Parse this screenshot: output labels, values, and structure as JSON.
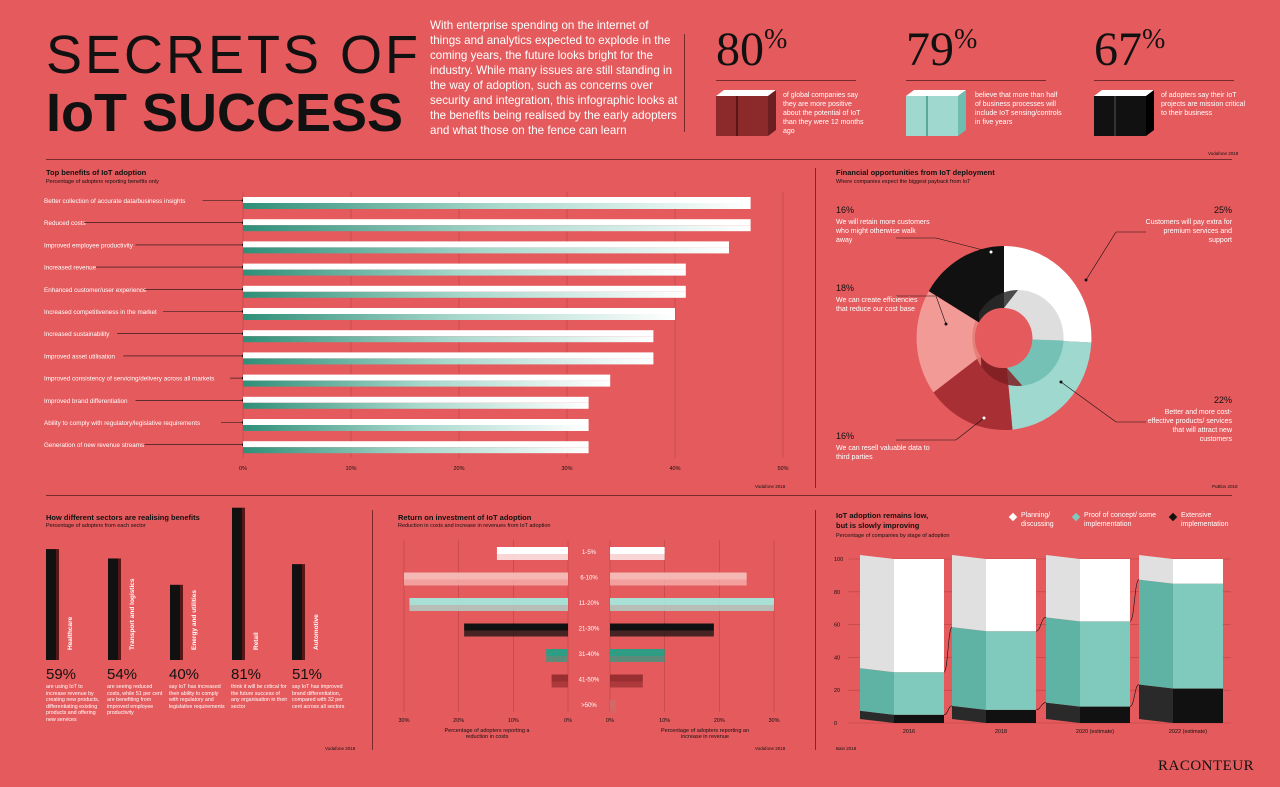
{
  "header": {
    "title_line1": "SECRETS OF",
    "title_line2": "IoT SUCCESS",
    "intro": "With enterprise spending on the internet of things and analytics expected to explode in the coming years, the future looks bright for the industry. While many issues are still standing in the way of adoption, such as concerns over security and integration, this infographic looks at the benefits being realised by the early adopters and what those on the fence can learn",
    "stats": [
      {
        "value": "80",
        "desc": "of global companies say they are more positive about the potential of IoT than they were 12 months ago",
        "color": "#8c2a2b"
      },
      {
        "value": "79",
        "desc": "believe that more than half of business processes will include IoT sensing/controls in five years",
        "color": "#9fd8cf"
      },
      {
        "value": "67",
        "desc": "of adopters say their IoT projects are mission critical to their business",
        "color": "#111111"
      }
    ],
    "source": "Vodafone 2018",
    "pct_sign": "%"
  },
  "benefits": {
    "title": "Top benefits of IoT adoption",
    "subtitle": "Percentage of adopters reporting benefits only",
    "source": "Vodafone 2018",
    "ticks": [
      "0%",
      "10%",
      "20%",
      "30%",
      "40%",
      "50%"
    ]
  },
  "financial": {
    "title": "Financial opportunities from IoT deployment",
    "subtitle": "Where companies expect the biggest payback from IoT",
    "source": "PuBlos 2018",
    "slices": [
      {
        "pct": "16%",
        "text": "We will retain more customers who might otherwise walk away"
      },
      {
        "pct": "25%",
        "text": "Customers will pay extra for premium services and support"
      },
      {
        "pct": "18%",
        "text": "We can create efficiencies that reduce our cost base"
      },
      {
        "pct": "22%",
        "text": "Better and more cost-effective products/ services that will attract new customers"
      },
      {
        "pct": "16%",
        "text": "We can resell valuable data to third parties"
      }
    ]
  },
  "sectors": {
    "title": "How different sectors are realising benefits",
    "subtitle": "Percentage of adopters from each sector",
    "source": "Vodafone 2018",
    "items": [
      {
        "name": "Healthcare",
        "pct": "59",
        "desc": "are using IoT to increase revenue by creating new products, differentiating existing products and offering new services"
      },
      {
        "name": "Transport and logistics",
        "pct": "54",
        "desc": "are seeing reduced costs, while 51 per cent are benefiting from improved employee productivity"
      },
      {
        "name": "Energy and utilities",
        "pct": "40",
        "desc": "say IoT has increased their ability to comply with regulatory and legislative requirements"
      },
      {
        "name": "Retail",
        "pct": "81",
        "desc": "think it will be critical for the future success of any organisation in their sector"
      },
      {
        "name": "Automotive",
        "pct": "51",
        "desc": "say IoT has improved brand differentiation, compared with 32 per cent across all sectors"
      }
    ]
  },
  "roi": {
    "title": "Return on investment of IoT adoption",
    "subtitle": "Reduction in costs and increase in revenues from IoT adoption",
    "left_caption": "Percentage of adopters reporting a reduction in costs",
    "right_caption": "Percentage of adopters reporting an increase in revenue",
    "source": "Vodafone 2018",
    "left_ticks": [
      "30%",
      "20%",
      "10%",
      "0%"
    ],
    "right_ticks": [
      "0%",
      "10%",
      "20%",
      "30%"
    ]
  },
  "adoption": {
    "title_line1": "IoT adoption remains low,",
    "title_line2": "but is slowly improving",
    "subtitle": "Percentage of companies by stage of adoption",
    "source": "Bain 2018",
    "legend": [
      {
        "label": "Planning/ discussing",
        "color": "#ffffff"
      },
      {
        "label": "Proof of concept/ some implementation",
        "color": "#7fcabd"
      },
      {
        "label": "Extensive implementation",
        "color": "#111111"
      }
    ],
    "yticks": [
      "100",
      "80",
      "60",
      "40",
      "20",
      "0"
    ]
  },
  "brand": "RACONTEUR",
  "chart_data": [
    {
      "type": "bar",
      "title": "Top benefits of IoT adoption",
      "categories": [
        "Better collection of accurate data/business insights",
        "Reduced costs",
        "Improved employee productivity",
        "Increased revenue",
        "Enhanced customer/user experience",
        "Increased competitiveness in the market",
        "Increased sustainability",
        "Improved asset utilisation",
        "Improved consistency of servicing/delivery across all markets",
        "Improved brand differentiation",
        "Ability to comply with regulatory/legislative requirements",
        "Generation of new revenue streams"
      ],
      "values": [
        47,
        47,
        45,
        41,
        41,
        40,
        38,
        38,
        34,
        32,
        32,
        32
      ],
      "xlim": [
        0,
        50
      ]
    },
    {
      "type": "pie",
      "title": "Financial opportunities from IoT deployment",
      "categories": [
        "Customers will pay extra for premium services and support",
        "Better and more cost-effective products/ services that will attract new customers",
        "We can resell valuable data to third parties",
        "We can create efficiencies that reduce our cost base",
        "We will retain more customers who might otherwise walk away"
      ],
      "values": [
        25,
        22,
        16,
        18,
        16
      ]
    },
    {
      "type": "bar",
      "title": "How different sectors are realising benefits",
      "categories": [
        "Healthcare",
        "Transport and logistics",
        "Energy and utilities",
        "Retail",
        "Automotive"
      ],
      "values": [
        59,
        54,
        40,
        81,
        51
      ]
    },
    {
      "type": "bar",
      "title": "Return on investment of IoT adoption",
      "categories": [
        "1-5%",
        "6-10%",
        "11-20%",
        "21-30%",
        "31-40%",
        "41-50%",
        ">50%"
      ],
      "series": [
        {
          "name": "Percentage of adopters reporting a reduction in costs",
          "values": [
            13,
            30,
            29,
            19,
            4,
            3,
            0
          ]
        },
        {
          "name": "Percentage of adopters reporting an increase in revenue",
          "values": [
            10,
            25,
            30,
            19,
            10,
            6,
            1
          ]
        }
      ],
      "xlim": [
        0,
        30
      ]
    },
    {
      "type": "bar",
      "title": "IoT adoption remains low, but is slowly improving",
      "categories": [
        "2016",
        "2018",
        "2020 (estimate)",
        "2022 (estimate)"
      ],
      "series": [
        {
          "name": "Extensive implementation",
          "values": [
            5,
            8,
            10,
            21
          ]
        },
        {
          "name": "Proof of concept/ some implementation",
          "values": [
            26,
            48,
            52,
            64
          ]
        },
        {
          "name": "Planning/ discussing",
          "values": [
            69,
            44,
            38,
            15
          ]
        }
      ],
      "ylim": [
        0,
        100
      ]
    }
  ]
}
